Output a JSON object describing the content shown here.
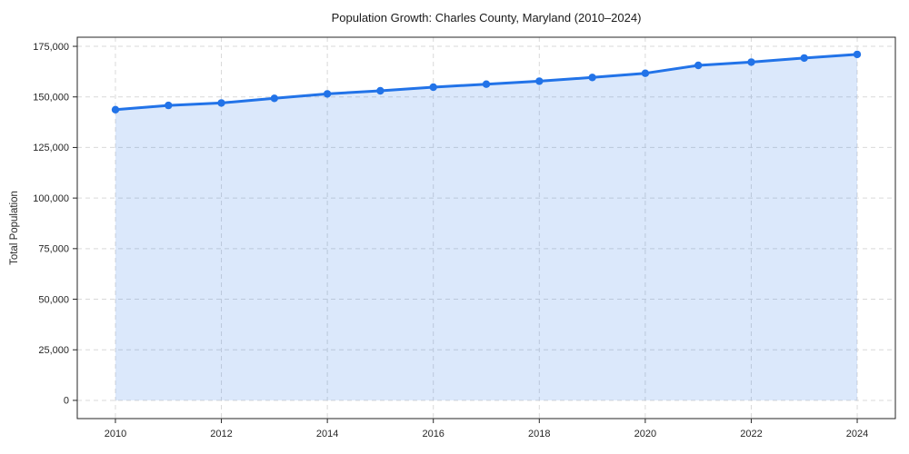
{
  "chart_data": {
    "type": "area",
    "title": "Population Growth: Charles County, Maryland (2010–2024)",
    "xlabel": "",
    "ylabel": "Total Population",
    "x": [
      2010,
      2011,
      2012,
      2013,
      2014,
      2015,
      2016,
      2017,
      2018,
      2019,
      2020,
      2021,
      2022,
      2023,
      2024
    ],
    "values": [
      143700,
      145800,
      147000,
      149300,
      151500,
      153000,
      154800,
      156300,
      157800,
      159600,
      161700,
      165600,
      167200,
      169200,
      171000
    ],
    "xticks": [
      2010,
      2012,
      2014,
      2016,
      2018,
      2020,
      2022,
      2024
    ],
    "xtick_labels": [
      "2010",
      "2012",
      "2014",
      "2016",
      "2018",
      "2020",
      "2022",
      "2024"
    ],
    "yticks": [
      0,
      25000,
      50000,
      75000,
      100000,
      125000,
      150000,
      175000
    ],
    "ytick_labels": [
      "0",
      "25,000",
      "50,000",
      "75,000",
      "100,000",
      "125,000",
      "150,000",
      "175,000"
    ],
    "xlim": [
      2009.28,
      2024.72
    ],
    "ylim": [
      -9000,
      179500
    ],
    "grid": true,
    "grid_style": "dashed",
    "legend": false,
    "marker": "circle",
    "line_width": 3,
    "colors": {
      "line": "#2273e8",
      "fill": "rgba(34,115,232,0.16)",
      "grid": "#d9d9d9",
      "spine": "#262626",
      "text": "#262626",
      "background": "#ffffff"
    }
  }
}
